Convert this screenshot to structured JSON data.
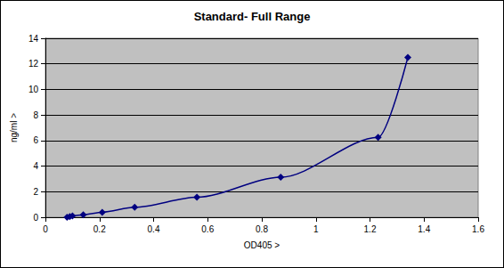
{
  "chart_data": {
    "type": "line",
    "title": "Standard- Full Range",
    "x_label": "OD405 >",
    "y_label": "ng/ml >",
    "x": [
      0.08,
      0.09,
      0.1,
      0.14,
      0.21,
      0.33,
      0.56,
      0.87,
      1.23,
      1.34
    ],
    "values": [
      0,
      0.05,
      0.1,
      0.2,
      0.39,
      0.78,
      1.56,
      3.13,
      6.25,
      12.5
    ],
    "color": "#000080",
    "marker": "diamond",
    "line_style": "smooth",
    "xlim": [
      0,
      1.6
    ],
    "xticks": [
      0,
      0.2,
      0.4,
      0.6,
      0.8,
      1,
      1.2,
      1.4,
      1.6
    ],
    "ylim": [
      0,
      14
    ],
    "yticks": [
      0,
      2,
      4,
      6,
      8,
      10,
      12,
      14
    ],
    "grid": true
  }
}
